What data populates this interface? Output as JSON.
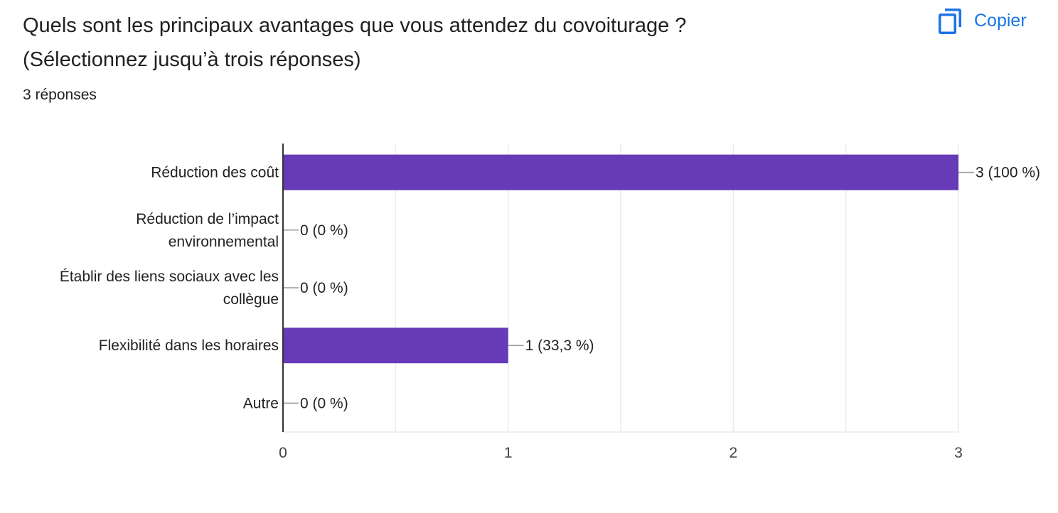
{
  "question": {
    "line1": "Quels sont les principaux avantages que vous attendez du covoiturage ?",
    "line2": "(Sélectionnez jusqu’à trois réponses)"
  },
  "responses_count": "3 réponses",
  "copy_button": {
    "label": "Copier",
    "icon": "copy-icon"
  },
  "colors": {
    "bar": "#673ab7",
    "accent": "#1a73e8",
    "grid": "#ebebeb",
    "axis": "#333333"
  },
  "chart_data": {
    "type": "bar",
    "orientation": "horizontal",
    "title": "",
    "xlabel": "",
    "ylabel": "",
    "xlim": [
      0,
      3
    ],
    "x_ticks": [
      "0",
      "1",
      "2",
      "3"
    ],
    "grid": true,
    "categories": [
      [
        "Réduction des coût"
      ],
      [
        "Réduction de l’impact",
        "environnemental"
      ],
      [
        "Établir des liens sociaux avec les",
        "collègue"
      ],
      [
        "Flexibilité dans les horaires"
      ],
      [
        "Autre"
      ]
    ],
    "values": [
      3,
      0,
      0,
      1,
      0
    ],
    "data_labels": [
      "3 (100 %)",
      "0 (0 %)",
      "0 (0 %)",
      "1 (33,3 %)",
      "0 (0 %)"
    ]
  }
}
